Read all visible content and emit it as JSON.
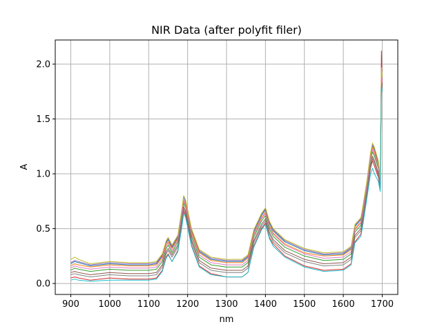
{
  "chart_data": {
    "type": "line",
    "title": "NIR Data (after polyfit filer)",
    "xlabel": "nm",
    "ylabel": "A",
    "xlim": [
      860,
      1740
    ],
    "ylim": [
      -0.1,
      2.22
    ],
    "xticks": [
      900,
      1000,
      1100,
      1200,
      1300,
      1400,
      1500,
      1600,
      1700
    ],
    "xtick_labels": [
      "900",
      "1000",
      "1100",
      "1200",
      "1300",
      "1400",
      "1500",
      "1600",
      "1700"
    ],
    "yticks": [
      0.0,
      0.5,
      1.0,
      1.5,
      2.0
    ],
    "ytick_labels": [
      "0.0",
      "0.5",
      "1.0",
      "1.5",
      "2.0"
    ],
    "grid": true,
    "legend": "none",
    "x": [
      900,
      910,
      920,
      950,
      1000,
      1050,
      1100,
      1120,
      1135,
      1145,
      1150,
      1160,
      1175,
      1185,
      1190,
      1195,
      1210,
      1230,
      1260,
      1300,
      1340,
      1355,
      1370,
      1390,
      1400,
      1410,
      1420,
      1450,
      1500,
      1550,
      1600,
      1620,
      1630,
      1645,
      1650,
      1660,
      1670,
      1675,
      1680,
      1690,
      1695,
      1698,
      1700
    ],
    "palette": [
      "#1f77b4",
      "#ff7f0e",
      "#2ca02c",
      "#d62728",
      "#9467bd",
      "#8c564b",
      "#e377c2",
      "#7f7f7f",
      "#bcbd22",
      "#17becf"
    ],
    "series": [
      {
        "values": [
          0.18,
          0.2,
          0.19,
          0.16,
          0.18,
          0.17,
          0.17,
          0.18,
          0.25,
          0.37,
          0.4,
          0.33,
          0.42,
          0.65,
          0.79,
          0.74,
          0.48,
          0.29,
          0.22,
          0.2,
          0.2,
          0.24,
          0.47,
          0.62,
          0.67,
          0.55,
          0.48,
          0.38,
          0.3,
          0.26,
          0.27,
          0.32,
          0.52,
          0.58,
          0.68,
          0.9,
          1.17,
          1.26,
          1.22,
          1.1,
          0.95,
          1.98,
          1.86
        ]
      },
      {
        "values": [
          0.16,
          0.18,
          0.17,
          0.15,
          0.17,
          0.16,
          0.16,
          0.17,
          0.24,
          0.36,
          0.38,
          0.32,
          0.41,
          0.63,
          0.76,
          0.72,
          0.47,
          0.28,
          0.21,
          0.19,
          0.19,
          0.23,
          0.45,
          0.6,
          0.65,
          0.53,
          0.46,
          0.36,
          0.28,
          0.25,
          0.26,
          0.31,
          0.5,
          0.56,
          0.65,
          0.88,
          1.15,
          1.24,
          1.2,
          1.08,
          0.93,
          1.95,
          1.84
        ]
      },
      {
        "values": [
          0.12,
          0.14,
          0.13,
          0.11,
          0.13,
          0.12,
          0.12,
          0.13,
          0.2,
          0.32,
          0.35,
          0.28,
          0.38,
          0.6,
          0.73,
          0.69,
          0.43,
          0.24,
          0.17,
          0.15,
          0.15,
          0.19,
          0.42,
          0.57,
          0.62,
          0.5,
          0.43,
          0.33,
          0.25,
          0.21,
          0.22,
          0.27,
          0.47,
          0.53,
          0.62,
          0.85,
          1.12,
          1.2,
          1.16,
          1.05,
          0.9,
          1.9,
          1.8
        ]
      },
      {
        "values": [
          0.05,
          0.06,
          0.05,
          0.03,
          0.05,
          0.04,
          0.04,
          0.05,
          0.12,
          0.24,
          0.27,
          0.2,
          0.3,
          0.52,
          0.66,
          0.62,
          0.35,
          0.16,
          0.09,
          0.06,
          0.06,
          0.1,
          0.34,
          0.5,
          0.55,
          0.42,
          0.36,
          0.25,
          0.16,
          0.12,
          0.13,
          0.18,
          0.38,
          0.45,
          0.55,
          0.78,
          1.05,
          1.12,
          1.07,
          0.97,
          0.86,
          2.12,
          1.78
        ]
      },
      {
        "values": [
          0.19,
          0.21,
          0.2,
          0.17,
          0.19,
          0.18,
          0.18,
          0.19,
          0.26,
          0.38,
          0.41,
          0.34,
          0.43,
          0.66,
          0.8,
          0.75,
          0.49,
          0.3,
          0.23,
          0.21,
          0.21,
          0.25,
          0.48,
          0.63,
          0.68,
          0.56,
          0.49,
          0.39,
          0.31,
          0.27,
          0.28,
          0.33,
          0.53,
          0.59,
          0.69,
          0.91,
          1.18,
          1.27,
          1.23,
          1.11,
          0.96,
          1.96,
          1.87
        ]
      },
      {
        "values": [
          0.1,
          0.11,
          0.1,
          0.08,
          0.1,
          0.09,
          0.09,
          0.1,
          0.17,
          0.29,
          0.32,
          0.26,
          0.35,
          0.57,
          0.7,
          0.66,
          0.4,
          0.21,
          0.14,
          0.12,
          0.12,
          0.16,
          0.39,
          0.54,
          0.59,
          0.47,
          0.4,
          0.3,
          0.22,
          0.18,
          0.19,
          0.24,
          0.44,
          0.5,
          0.6,
          0.82,
          1.08,
          1.16,
          1.12,
          1.01,
          0.88,
          1.88,
          1.79
        ]
      },
      {
        "values": [
          0.14,
          0.16,
          0.15,
          0.13,
          0.15,
          0.14,
          0.14,
          0.15,
          0.22,
          0.34,
          0.37,
          0.3,
          0.4,
          0.62,
          0.75,
          0.7,
          0.45,
          0.26,
          0.19,
          0.17,
          0.17,
          0.21,
          0.44,
          0.59,
          0.64,
          0.52,
          0.45,
          0.35,
          0.27,
          0.23,
          0.24,
          0.29,
          0.49,
          0.55,
          0.64,
          0.87,
          1.14,
          1.22,
          1.18,
          1.07,
          0.92,
          1.93,
          1.83
        ]
      },
      {
        "values": [
          0.08,
          0.09,
          0.08,
          0.06,
          0.08,
          0.07,
          0.07,
          0.08,
          0.15,
          0.27,
          0.3,
          0.24,
          0.33,
          0.55,
          0.68,
          0.64,
          0.38,
          0.19,
          0.12,
          0.1,
          0.1,
          0.14,
          0.37,
          0.52,
          0.57,
          0.45,
          0.38,
          0.28,
          0.2,
          0.16,
          0.17,
          0.22,
          0.42,
          0.48,
          0.58,
          0.8,
          1.06,
          1.14,
          1.1,
          0.99,
          0.87,
          1.85,
          1.77
        ]
      },
      {
        "values": [
          0.22,
          0.24,
          0.22,
          0.18,
          0.2,
          0.19,
          0.19,
          0.2,
          0.27,
          0.39,
          0.42,
          0.35,
          0.44,
          0.67,
          0.8,
          0.76,
          0.5,
          0.31,
          0.24,
          0.22,
          0.22,
          0.26,
          0.49,
          0.64,
          0.69,
          0.57,
          0.5,
          0.4,
          0.32,
          0.28,
          0.29,
          0.34,
          0.54,
          0.6,
          0.7,
          0.92,
          1.19,
          1.28,
          1.24,
          1.12,
          0.97,
          1.97,
          1.88
        ]
      },
      {
        "values": [
          0.03,
          0.04,
          0.03,
          0.02,
          0.03,
          0.03,
          0.03,
          0.04,
          0.11,
          0.23,
          0.26,
          0.2,
          0.29,
          0.51,
          0.64,
          0.6,
          0.34,
          0.15,
          0.08,
          0.06,
          0.06,
          0.1,
          0.33,
          0.49,
          0.54,
          0.41,
          0.34,
          0.24,
          0.15,
          0.11,
          0.12,
          0.17,
          0.37,
          0.43,
          0.53,
          0.76,
          1.0,
          1.05,
          1.0,
          0.93,
          0.84,
          1.8,
          1.75
        ]
      }
    ]
  }
}
